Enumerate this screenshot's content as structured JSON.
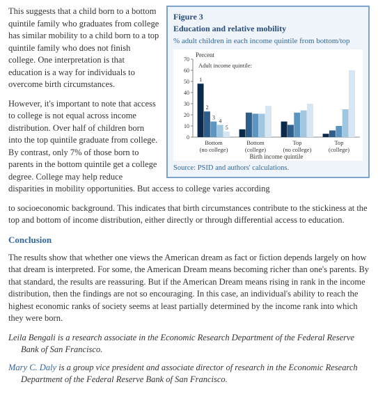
{
  "paragraphs": {
    "p1": "This suggests that a child born to a bottom quintile family who graduates from college has similar mobility to a child born to a top quintile family who does not finish college. One interpretation is that education is a way for individuals to overcome birth circumstances.",
    "p2": "However, it's important to note that access to college is not equal across income distribution. Over half of children born into the top quintile graduate from college. By contrast, only 7% of those born to parents in the bottom quintile get a college degree. College may help reduce disparities in mobility opportunities. But access to college varies according",
    "p2_cont": "to socioeconomic background. This indicates that birth circumstances contribute to the stickiness at the top and bottom of income distribution, either directly or through differential access to education.",
    "conclusion_head": "Conclusion",
    "p3": "The results show that whether one views the American dream as fact or fiction depends largely on how that dream is interpreted. For some, the American Dream means becoming richer than one's parents. By that standard, the results are reassuring. But if the American Dream means rising in rank in the income distribution, then the findings are not so encouraging. In this case, an individual's ability to reach the highest economic ranks of society seems at least partially determined by the income rank into which they were born.",
    "author1_pre": "Leila Bengali is a research associate in the Economic Research Department of the Federal Reserve Bank of San Francisco.",
    "author2_name": "Mary C. Daly",
    "author2_rest": " is a group vice president and associate director of research in the Economic Research Department of the Federal Reserve Bank of San Francisco."
  },
  "figure": {
    "label": "Figure 3",
    "title": "Education and relative mobility",
    "desc": "% adult children in each income quintile from bottom/top",
    "source": "Source: PSID and authors' calculations.",
    "chart": {
      "type": "bar",
      "ylabel": "Percent",
      "ylim": [
        0,
        70
      ],
      "ytick_step": 10,
      "legend_title": "Adult income quintile:",
      "legend_labels": [
        "1",
        "2",
        "3",
        "4",
        "5"
      ],
      "legend_colors": [
        "#0b2a4a",
        "#2d5e8c",
        "#5e95bf",
        "#a1c7e0",
        "#d6e6f2"
      ],
      "groups": [
        {
          "label": "Bottom\n(no college)",
          "values": [
            48,
            23,
            14,
            11,
            5
          ]
        },
        {
          "label": "Bottom\n(college)",
          "values": [
            7,
            22,
            21,
            21,
            28
          ]
        },
        {
          "label": "Top\n(no college)",
          "values": [
            14,
            11,
            22,
            24,
            30
          ]
        },
        {
          "label": "Top\n(college)",
          "values": [
            3,
            6,
            10,
            25,
            60
          ]
        }
      ],
      "xaxis_label": "Birth income quintile",
      "background_color": "#ffffff",
      "axis_color": "#666666",
      "label_fontsize": 9,
      "tick_fontsize": 8
    }
  }
}
